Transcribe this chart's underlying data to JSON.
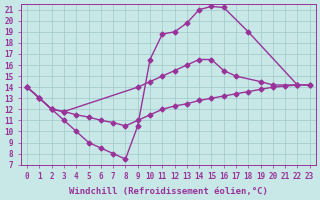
{
  "background_color": "#c8e8e8",
  "grid_color": "#a0c8c8",
  "line_color": "#993399",
  "marker": "D",
  "marker_size": 2.5,
  "line_width": 1.0,
  "xlabel": "Windchill (Refroidissement éolien,°C)",
  "xlabel_fontsize": 6.5,
  "tick_fontsize": 5.5,
  "xlim": [
    -0.5,
    23.5
  ],
  "ylim": [
    7,
    21.5
  ],
  "xticks": [
    0,
    1,
    2,
    3,
    4,
    5,
    6,
    7,
    8,
    9,
    10,
    11,
    12,
    13,
    14,
    15,
    16,
    17,
    18,
    19,
    20,
    21,
    22,
    23
  ],
  "yticks": [
    7,
    8,
    9,
    10,
    11,
    12,
    13,
    14,
    15,
    16,
    17,
    18,
    19,
    20,
    21
  ],
  "s1_x": [
    0,
    1,
    2,
    3,
    4,
    5,
    6,
    7,
    8,
    9,
    10,
    11,
    12,
    13,
    14,
    15,
    16,
    18,
    22
  ],
  "s1_y": [
    14.0,
    13.0,
    12.0,
    11.0,
    10.0,
    9.0,
    8.5,
    8.0,
    7.5,
    10.5,
    16.5,
    18.8,
    19.0,
    19.8,
    21.0,
    21.3,
    21.2,
    19.0,
    14.2
  ],
  "s2_x": [
    0,
    1,
    2,
    3,
    9,
    10,
    11,
    12,
    13,
    14,
    15,
    16,
    17,
    19,
    20,
    22,
    23
  ],
  "s2_y": [
    14.0,
    13.0,
    12.0,
    11.8,
    14.0,
    14.5,
    15.0,
    15.5,
    16.0,
    16.5,
    16.5,
    15.5,
    15.0,
    14.5,
    14.2,
    14.2,
    14.2
  ],
  "s3_x": [
    0,
    1,
    2,
    3,
    4,
    5,
    6,
    7,
    8,
    9,
    10,
    11,
    12,
    13,
    14,
    15,
    16,
    17,
    18,
    19,
    20,
    21,
    22,
    23
  ],
  "s3_y": [
    14.0,
    13.0,
    12.0,
    11.8,
    11.5,
    11.3,
    11.0,
    10.8,
    10.5,
    11.0,
    11.5,
    12.0,
    12.3,
    12.5,
    12.8,
    13.0,
    13.2,
    13.4,
    13.6,
    13.8,
    14.0,
    14.1,
    14.2,
    14.2
  ]
}
